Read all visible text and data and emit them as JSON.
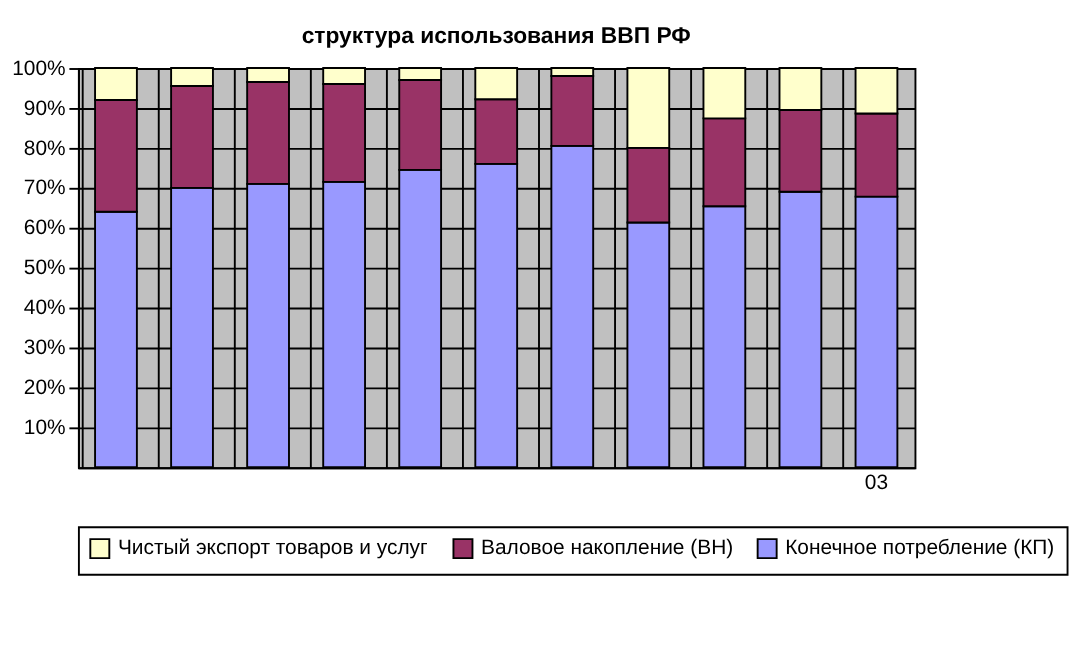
{
  "chart_data": {
    "type": "bar",
    "stacked": true,
    "title": "структура использования ВВП РФ",
    "categories": [
      null,
      null,
      null,
      null,
      null,
      null,
      null,
      null,
      null,
      null,
      "03"
    ],
    "series": [
      {
        "name": "Конечное потребление (КП)",
        "color": "#9999ff",
        "values": [
          64,
          70,
          71,
          71.5,
          74.5,
          76,
          80.5,
          61.3,
          65.4,
          69,
          67.8
        ]
      },
      {
        "name": "Валовое накопление (ВН)",
        "color": "#993366",
        "values": [
          28,
          25.5,
          25.5,
          24.5,
          22.5,
          16.2,
          17.5,
          18.7,
          22,
          20.5,
          20.8
        ]
      },
      {
        "name": "Чистый экспорт товаров и услуг",
        "color": "#ffffcc",
        "values": [
          8,
          4.5,
          3.5,
          4,
          3,
          7.8,
          2,
          20,
          12.6,
          10.5,
          11.4
        ]
      }
    ],
    "ylim": [
      0,
      100
    ],
    "yticks": [
      {
        "value": 10,
        "label": "10%"
      },
      {
        "value": 20,
        "label": "20%"
      },
      {
        "value": 30,
        "label": "30%"
      },
      {
        "value": 40,
        "label": "40%"
      },
      {
        "value": 50,
        "label": "50%"
      },
      {
        "value": 60,
        "label": "60%"
      },
      {
        "value": 70,
        "label": "70%"
      },
      {
        "value": 80,
        "label": "80%"
      },
      {
        "value": 90,
        "label": "90%"
      },
      {
        "value": 100,
        "label": "100%"
      }
    ],
    "grid": true,
    "legend": "bottom"
  }
}
